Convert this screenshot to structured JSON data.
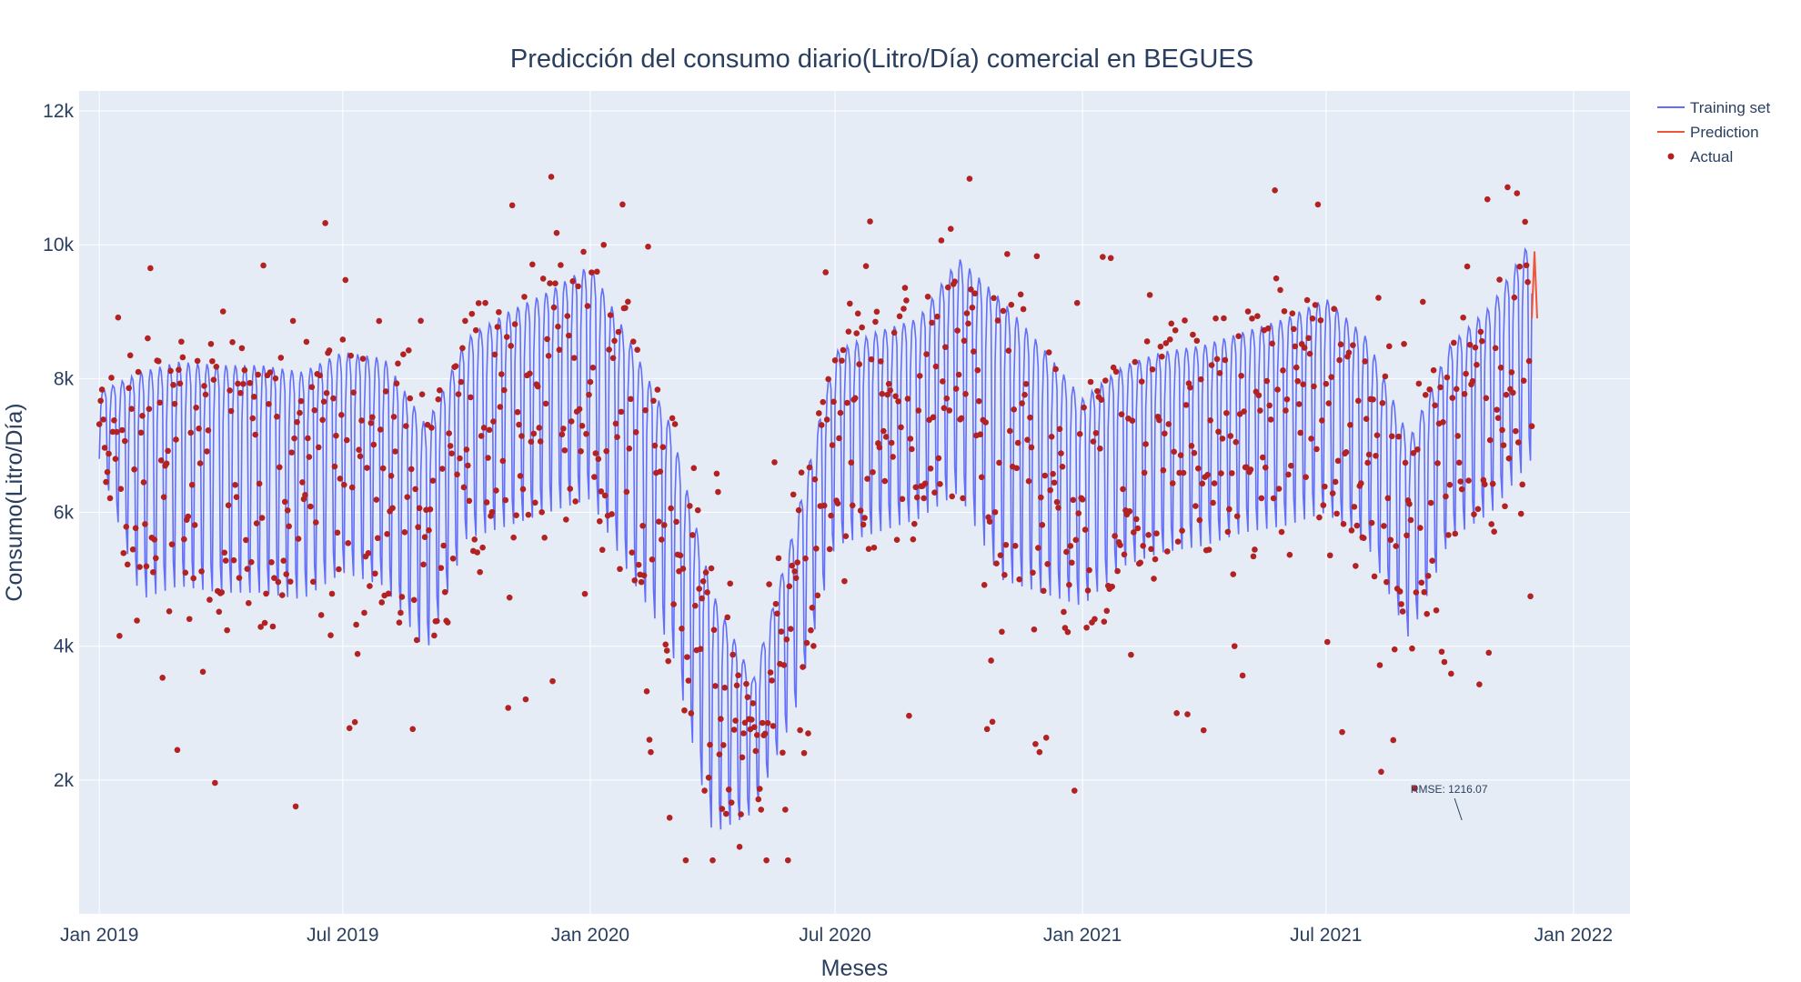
{
  "chart_data": {
    "type": "line",
    "title": "Predicción del consumo diario(Litro/Día) comercial en BEGUES",
    "xlabel": "Meses",
    "ylabel": "Consumo(Litro/Día)",
    "x_range": [
      "2018-12-17",
      "2022-02-12"
    ],
    "y_range": [
      0,
      12300
    ],
    "x_ticks": [
      {
        "date": "2019-01-01",
        "label": "Jan 2019"
      },
      {
        "date": "2019-07-01",
        "label": "Jul 2019"
      },
      {
        "date": "2020-01-01",
        "label": "Jan 2020"
      },
      {
        "date": "2020-07-01",
        "label": "Jul 2020"
      },
      {
        "date": "2021-01-01",
        "label": "Jan 2021"
      },
      {
        "date": "2021-07-01",
        "label": "Jul 2021"
      },
      {
        "date": "2022-01-01",
        "label": "Jan 2022"
      }
    ],
    "y_ticks": [
      {
        "value": 2000,
        "label": "2k"
      },
      {
        "value": 4000,
        "label": "4k"
      },
      {
        "value": 6000,
        "label": "6k"
      },
      {
        "value": 8000,
        "label": "8k"
      },
      {
        "value": 10000,
        "label": "10k"
      },
      {
        "value": 12000,
        "label": "12k"
      }
    ],
    "grid": true,
    "legend_position": "top-right",
    "colors": {
      "training": "#636efa",
      "prediction": "#ef553b",
      "actual": "#b22222",
      "plot_bg": "#e5ecf6",
      "grid": "#ffffff",
      "text": "#2a3f5f"
    },
    "series": [
      {
        "name": "Training set",
        "type": "line",
        "start_date": "2019-01-01",
        "end_date": "2021-12-01",
        "weekly_pattern_envelope": {
          "dates": [
            "2019-01-01",
            "2019-02-01",
            "2019-03-01",
            "2019-04-01",
            "2019-05-01",
            "2019-06-01",
            "2019-07-01",
            "2019-08-01",
            "2019-09-01",
            "2019-10-01",
            "2019-11-01",
            "2019-12-01",
            "2020-01-01",
            "2020-02-01",
            "2020-03-01",
            "2020-04-01",
            "2020-05-01",
            "2020-06-01",
            "2020-07-01",
            "2020-08-01",
            "2020-09-01",
            "2020-10-01",
            "2020-11-01",
            "2020-12-01",
            "2021-01-01",
            "2021-02-01",
            "2021-03-01",
            "2021-04-01",
            "2021-05-01",
            "2021-06-01",
            "2021-07-01",
            "2021-08-01",
            "2021-09-01",
            "2021-10-01",
            "2021-11-01",
            "2021-12-01"
          ],
          "upper": [
            7800,
            8100,
            8250,
            8200,
            8200,
            8100,
            8400,
            8300,
            7300,
            8600,
            9000,
            9300,
            9700,
            8500,
            7300,
            4800,
            3500,
            5800,
            8400,
            8700,
            8900,
            9800,
            9200,
            8500,
            7700,
            8200,
            8400,
            8500,
            8700,
            8900,
            9200,
            8600,
            7100,
            8500,
            9100,
            10100
          ],
          "lower": [
            6800,
            4700,
            4900,
            4800,
            4800,
            4700,
            5100,
            4900,
            3900,
            5600,
            5800,
            6000,
            6200,
            5000,
            4000,
            1200,
            1500,
            3000,
            5500,
            5700,
            5900,
            6300,
            5000,
            4800,
            4600,
            5200,
            5400,
            5500,
            5700,
            5800,
            6000,
            5500,
            4100,
            5600,
            6000,
            6800
          ]
        }
      },
      {
        "name": "Prediction",
        "type": "line",
        "x": [
          "2021-12-01",
          "2021-12-03",
          "2021-12-05"
        ],
        "y": [
          8900,
          9900,
          8900
        ]
      },
      {
        "name": "Actual",
        "type": "scatter",
        "description_range": {
          "start_date": "2019-01-01",
          "end_date": "2021-12-01",
          "min": 800,
          "max": 11700
        }
      }
    ],
    "annotations": [
      {
        "text": "RMSE: 1216.07",
        "x": "2021-10-10",
        "y": 1400
      }
    ]
  }
}
